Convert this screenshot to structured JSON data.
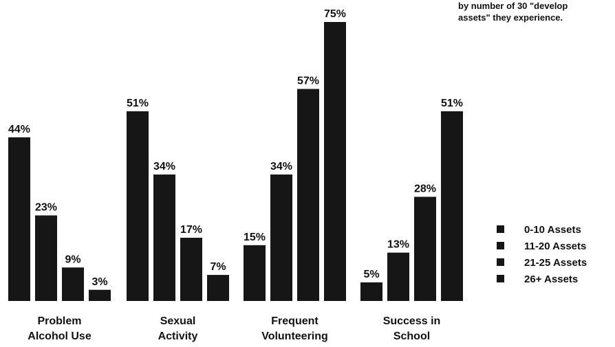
{
  "caption": {
    "line1": "by number of 30 \"develop",
    "line2": "assets\" they experience."
  },
  "chart_data": {
    "type": "bar",
    "categories": [
      [
        "Problem",
        "Alcohol Use"
      ],
      [
        "Sexual",
        "Activity"
      ],
      [
        "Frequent",
        "Volunteering"
      ],
      [
        "Success in",
        "School"
      ]
    ],
    "series": [
      {
        "name": "0-10 Assets",
        "values": [
          44,
          51,
          15,
          5
        ]
      },
      {
        "name": "11-20 Assets",
        "values": [
          23,
          34,
          34,
          13
        ]
      },
      {
        "name": "21-25 Assets",
        "values": [
          9,
          17,
          57,
          28
        ]
      },
      {
        "name": "26+ Assets",
        "values": [
          3,
          7,
          75,
          51
        ]
      }
    ],
    "value_suffix": "%",
    "ylim": [
      0,
      75
    ],
    "grid": false,
    "legend_position": "right",
    "colors": {
      "bar": "#161616",
      "text": "#111111"
    }
  }
}
